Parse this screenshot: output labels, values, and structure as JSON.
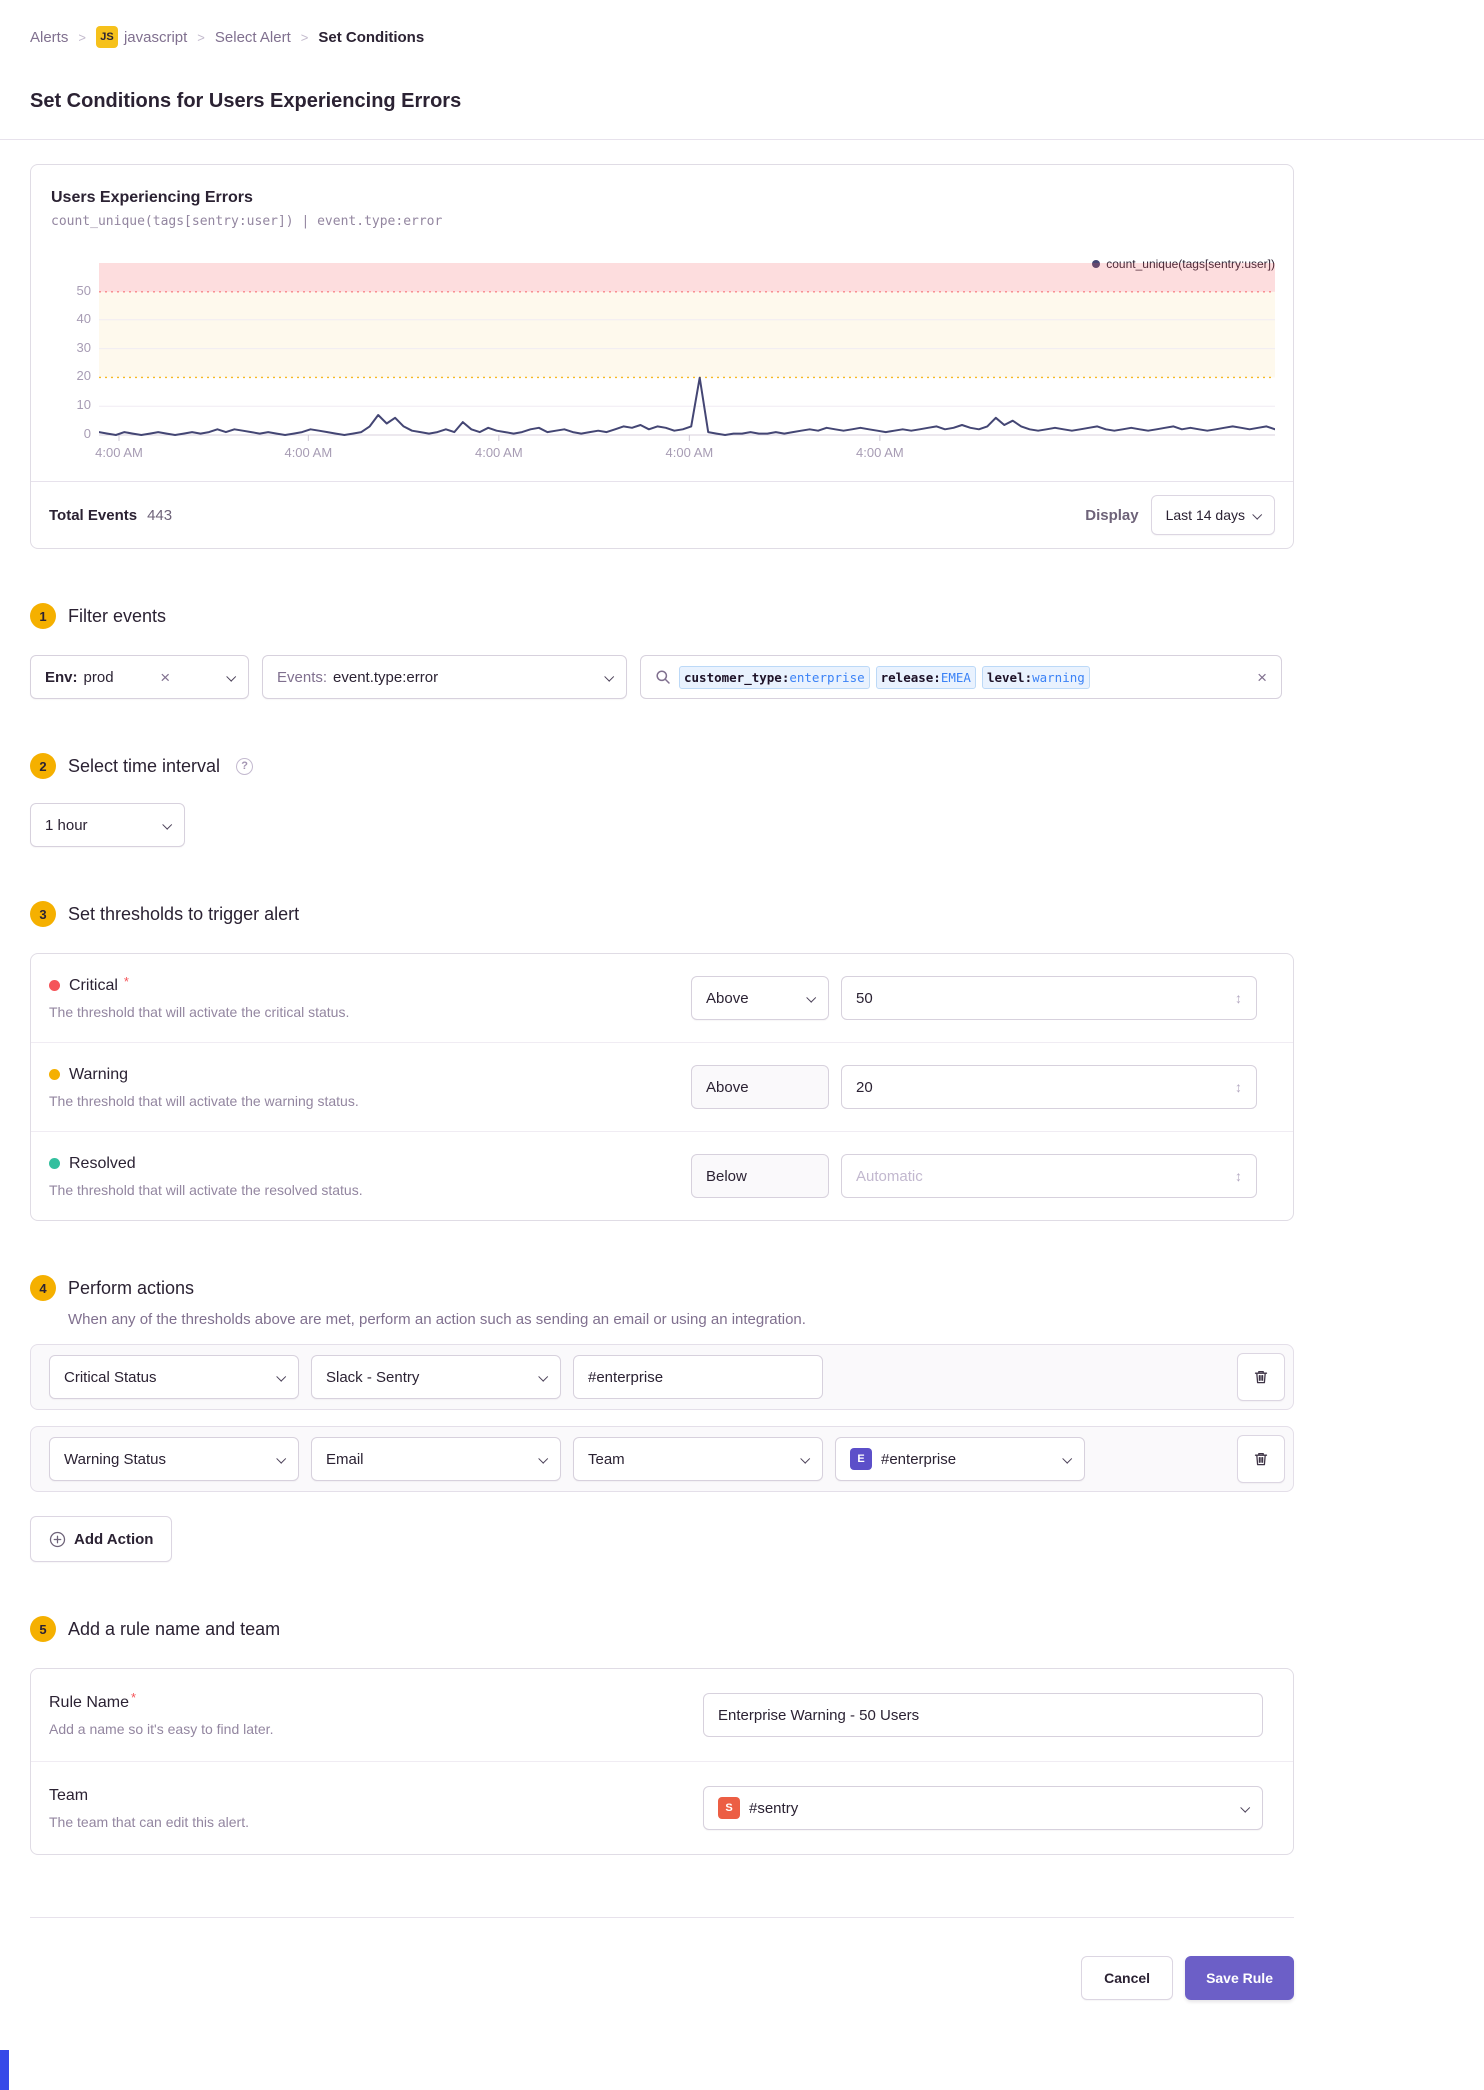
{
  "breadcrumb": {
    "separator": ">",
    "items": [
      {
        "label": "Alerts"
      },
      {
        "label": "javascript",
        "badge": "JS"
      },
      {
        "label": "Select Alert"
      },
      {
        "label": "Set Conditions"
      }
    ]
  },
  "page": {
    "title": "Set Conditions for Users Experiencing Errors"
  },
  "chart_panel": {
    "title": "Users Experiencing Errors",
    "query": "count_unique(tags[sentry:user]) | event.type:error",
    "legend": "count_unique(tags[sentry:user])",
    "total_events_label": "Total Events",
    "total_events_value": "443",
    "display_label": "Display",
    "display_value": "Last 14 days"
  },
  "chart_data": {
    "type": "line",
    "title": "Users Experiencing Errors",
    "ylabel": "",
    "xlabel": "",
    "ylim": [
      0,
      60
    ],
    "yticks": [
      "50",
      "40",
      "30",
      "20",
      "10",
      "0"
    ],
    "xticks": [
      "4:00 AM",
      "4:00 AM",
      "4:00 AM",
      "4:00 AM",
      "4:00 AM"
    ],
    "thresholds": {
      "critical": 50,
      "warning": 20
    },
    "colors": {
      "line": "#444674",
      "critical_zone": "#f55459",
      "warning_zone": "#f5b000"
    },
    "legend_position": "top-right",
    "grid": true,
    "series": [
      {
        "name": "count_unique(tags[sentry:user])",
        "values": [
          1,
          0.5,
          0,
          1,
          0.5,
          0,
          0.5,
          1,
          0.5,
          0,
          0.5,
          1,
          0.5,
          1,
          2,
          1,
          2,
          1.5,
          1,
          0.5,
          1,
          0.5,
          0,
          0.5,
          1,
          2,
          1.5,
          1,
          0.5,
          0,
          0.5,
          1,
          3,
          7,
          4,
          6,
          3,
          1.5,
          1,
          0.5,
          1,
          2,
          1,
          4.5,
          2,
          1,
          2.5,
          1.5,
          1,
          0.5,
          1,
          2,
          2.5,
          1,
          1.5,
          2,
          1,
          0.5,
          1,
          1.5,
          1,
          2,
          3,
          2.5,
          3.5,
          2,
          3,
          2.5,
          1.5,
          2,
          3,
          20,
          1,
          0.5,
          0,
          0.5,
          0.5,
          1,
          0.5,
          0.5,
          1,
          0.5,
          1,
          1.5,
          2,
          1.5,
          2.5,
          2,
          1.5,
          2,
          2.5,
          2,
          1.5,
          1,
          1.5,
          2,
          1.5,
          2,
          2.5,
          3,
          2,
          2.5,
          3.5,
          2.5,
          2,
          3,
          6,
          3.5,
          5,
          3,
          2,
          1.5,
          2,
          2.5,
          2,
          1.5,
          2,
          2.5,
          3,
          2,
          1.5,
          2,
          2.5,
          2,
          1.5,
          2,
          2.5,
          3,
          2,
          2.5,
          2,
          1.5,
          2,
          2.5,
          3,
          2.5,
          2,
          2.5,
          3,
          2
        ]
      }
    ]
  },
  "sections": {
    "filter": {
      "number": "1",
      "title": "Filter events",
      "env": {
        "prefix": "Env:",
        "value": "prod"
      },
      "events": {
        "prefix": "Events:",
        "value": "event.type:error"
      },
      "search": {
        "tokens": [
          {
            "key": "customer_type:",
            "value": "enterprise"
          },
          {
            "key": "release:",
            "value": "EMEA"
          },
          {
            "key": "level:",
            "value": "warning"
          }
        ]
      }
    },
    "interval": {
      "number": "2",
      "title": "Select time interval",
      "value": "1 hour"
    },
    "thresholds": {
      "number": "3",
      "title": "Set thresholds to trigger alert",
      "rows": [
        {
          "label": "Critical",
          "required": "*",
          "description": "The threshold that will activate the critical status.",
          "comparator": "Above",
          "value": "50"
        },
        {
          "label": "Warning",
          "description": "The threshold that will activate the warning status.",
          "comparator": "Above",
          "value": "20"
        },
        {
          "label": "Resolved",
          "description": "The threshold that will activate the resolved status.",
          "comparator": "Below",
          "placeholder": "Automatic"
        }
      ]
    },
    "actions": {
      "number": "4",
      "title": "Perform actions",
      "description": "When any of the thresholds above are met, perform an action such as sending an email or using an integration.",
      "rows": [
        {
          "status": "Critical Status",
          "type": "Slack - Sentry",
          "target": "#enterprise"
        },
        {
          "status": "Warning Status",
          "type": "Email",
          "target_type": "Team",
          "team_badge": "E",
          "team_name": "#enterprise"
        }
      ],
      "add_label": "Add Action"
    },
    "name_team": {
      "number": "5",
      "title": "Add a rule name and team",
      "rule_name": {
        "label": "Rule Name",
        "required": "*",
        "description": "Add a name so it's easy to find later.",
        "value": "Enterprise Warning - 50 Users"
      },
      "team": {
        "label": "Team",
        "description": "The team that can edit this alert.",
        "badge": "S",
        "value": "#sentry"
      }
    }
  },
  "footer": {
    "cancel_label": "Cancel",
    "save_label": "Save Rule"
  },
  "colors": {
    "accent": "#6c5fc7",
    "critical": "#f55459",
    "warning": "#f5b000",
    "resolved": "#33bf9e",
    "step_badge": "#f5b000",
    "line": "#444674"
  }
}
